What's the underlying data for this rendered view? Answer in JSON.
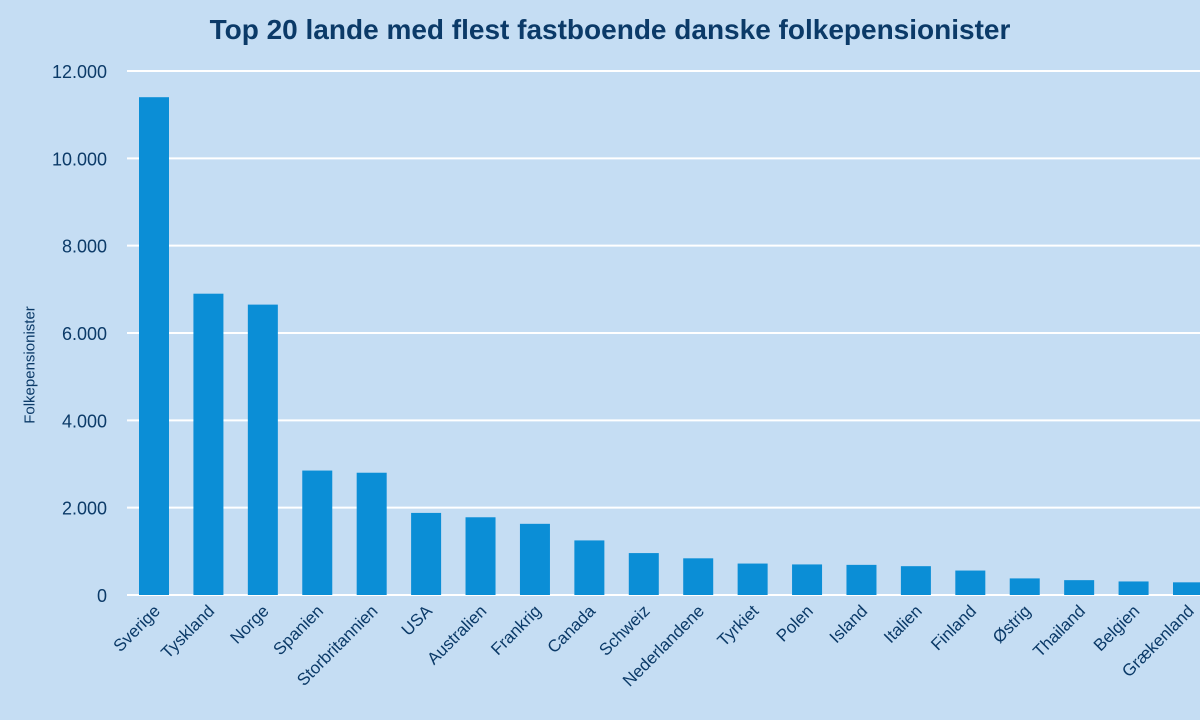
{
  "chart_data": {
    "type": "bar",
    "title": "Top 20 lande med flest fastboende danske folkepensionister",
    "xlabel": "",
    "ylabel": "Folkepensionister",
    "ylim": [
      0,
      12000
    ],
    "y_ticks": [
      "0",
      "2.000",
      "4.000",
      "6.000",
      "8.000",
      "10.000",
      "12.000"
    ],
    "y_tick_values": [
      0,
      2000,
      4000,
      6000,
      8000,
      10000,
      12000
    ],
    "grid": true,
    "categories": [
      "Sverige",
      "Tyskland",
      "Norge",
      "Spanien",
      "Storbritannien",
      "USA",
      "Australien",
      "Frankrig",
      "Canada",
      "Schweiz",
      "Nederlandene",
      "Tyrkiet",
      "Polen",
      "Island",
      "Italien",
      "Finland",
      "Østrig",
      "Thailand",
      "Belgien",
      "Grækenland"
    ],
    "values": [
      11400,
      6900,
      6650,
      2850,
      2800,
      1880,
      1780,
      1630,
      1250,
      960,
      840,
      720,
      700,
      690,
      660,
      560,
      380,
      340,
      310,
      290
    ]
  },
  "colors": {
    "background": "#c5ddf3",
    "bar": "#0b8ed6",
    "grid": "#ffffff",
    "text": "#0b3a68"
  }
}
